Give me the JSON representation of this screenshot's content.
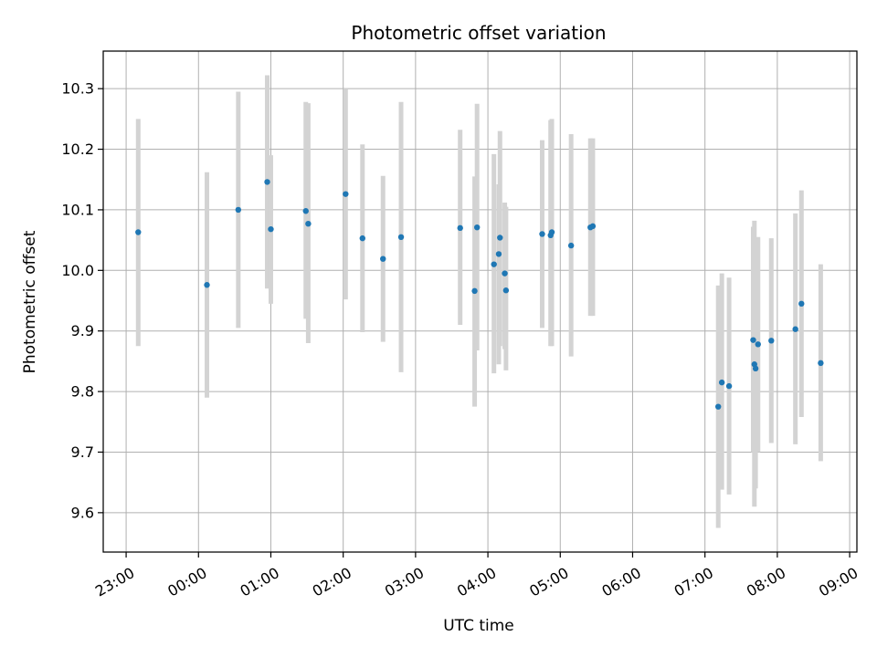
{
  "chart_data": {
    "type": "scatter",
    "title": "Photometric offset variation",
    "xlabel": "UTC time",
    "ylabel": "Photometric offset",
    "x_unit": "UTC time (HH:MM)",
    "x_ticks": [
      "23:00",
      "00:00",
      "01:00",
      "02:00",
      "03:00",
      "04:00",
      "05:00",
      "06:00",
      "07:00",
      "08:00",
      "09:00"
    ],
    "xlim": [
      "22:41",
      "09:06"
    ],
    "y_ticks": [
      "9.6",
      "9.7",
      "9.8",
      "9.9",
      "10.0",
      "10.1",
      "10.2",
      "10.3"
    ],
    "ylim": [
      9.535,
      10.362
    ],
    "grid": true,
    "errorbar_color": "#d3d3d3",
    "point_color": "#1f77b4",
    "points": [
      {
        "x": "23:10",
        "y": 10.063,
        "ylo": 9.875,
        "yhi": 10.25
      },
      {
        "x": "00:07",
        "y": 9.976,
        "ylo": 9.79,
        "yhi": 10.162
      },
      {
        "x": "00:33",
        "y": 10.1,
        "ylo": 9.905,
        "yhi": 10.295
      },
      {
        "x": "00:57",
        "y": 10.146,
        "ylo": 9.97,
        "yhi": 10.322
      },
      {
        "x": "01:00",
        "y": 10.068,
        "ylo": 9.945,
        "yhi": 10.19
      },
      {
        "x": "01:29",
        "y": 10.098,
        "ylo": 9.92,
        "yhi": 10.278
      },
      {
        "x": "01:31",
        "y": 10.077,
        "ylo": 9.88,
        "yhi": 10.276
      },
      {
        "x": "02:02",
        "y": 10.126,
        "ylo": 9.952,
        "yhi": 10.3
      },
      {
        "x": "02:16",
        "y": 10.053,
        "ylo": 9.898,
        "yhi": 10.208
      },
      {
        "x": "02:33",
        "y": 10.019,
        "ylo": 9.882,
        "yhi": 10.156
      },
      {
        "x": "02:48",
        "y": 10.055,
        "ylo": 9.832,
        "yhi": 10.278
      },
      {
        "x": "03:37",
        "y": 10.07,
        "ylo": 9.91,
        "yhi": 10.232
      },
      {
        "x": "03:49",
        "y": 9.966,
        "ylo": 9.775,
        "yhi": 10.155
      },
      {
        "x": "03:51",
        "y": 10.071,
        "ylo": 9.868,
        "yhi": 10.275
      },
      {
        "x": "04:05",
        "y": 10.01,
        "ylo": 9.83,
        "yhi": 10.192
      },
      {
        "x": "04:09",
        "y": 10.027,
        "ylo": 9.845,
        "yhi": 10.142
      },
      {
        "x": "04:10",
        "y": 10.054,
        "ylo": 9.875,
        "yhi": 10.23
      },
      {
        "x": "04:14",
        "y": 9.995,
        "ylo": 9.87,
        "yhi": 10.112
      },
      {
        "x": "04:15",
        "y": 9.967,
        "ylo": 9.835,
        "yhi": 10.105
      },
      {
        "x": "04:45",
        "y": 10.06,
        "ylo": 9.905,
        "yhi": 10.215
      },
      {
        "x": "04:52",
        "y": 10.058,
        "ylo": 9.875,
        "yhi": 10.248
      },
      {
        "x": "04:53",
        "y": 10.063,
        "ylo": 9.875,
        "yhi": 10.25
      },
      {
        "x": "05:09",
        "y": 10.041,
        "ylo": 9.858,
        "yhi": 10.225
      },
      {
        "x": "05:25",
        "y": 10.071,
        "ylo": 9.925,
        "yhi": 10.218
      },
      {
        "x": "05:27",
        "y": 10.073,
        "ylo": 9.925,
        "yhi": 10.218
      },
      {
        "x": "07:11",
        "y": 9.775,
        "ylo": 9.575,
        "yhi": 9.975
      },
      {
        "x": "07:14",
        "y": 9.815,
        "ylo": 9.638,
        "yhi": 9.995
      },
      {
        "x": "07:20",
        "y": 9.809,
        "ylo": 9.63,
        "yhi": 9.988
      },
      {
        "x": "07:40",
        "y": 9.885,
        "ylo": 9.7,
        "yhi": 10.072
      },
      {
        "x": "07:41",
        "y": 9.845,
        "ylo": 9.61,
        "yhi": 10.082
      },
      {
        "x": "07:42",
        "y": 9.838,
        "ylo": 9.64,
        "yhi": 10.036
      },
      {
        "x": "07:44",
        "y": 9.878,
        "ylo": 9.7,
        "yhi": 10.055
      },
      {
        "x": "07:55",
        "y": 9.884,
        "ylo": 9.715,
        "yhi": 10.053
      },
      {
        "x": "08:15",
        "y": 9.903,
        "ylo": 9.713,
        "yhi": 10.094
      },
      {
        "x": "08:20",
        "y": 9.945,
        "ylo": 9.758,
        "yhi": 10.132
      },
      {
        "x": "08:36",
        "y": 9.847,
        "ylo": 9.685,
        "yhi": 10.01
      }
    ]
  }
}
